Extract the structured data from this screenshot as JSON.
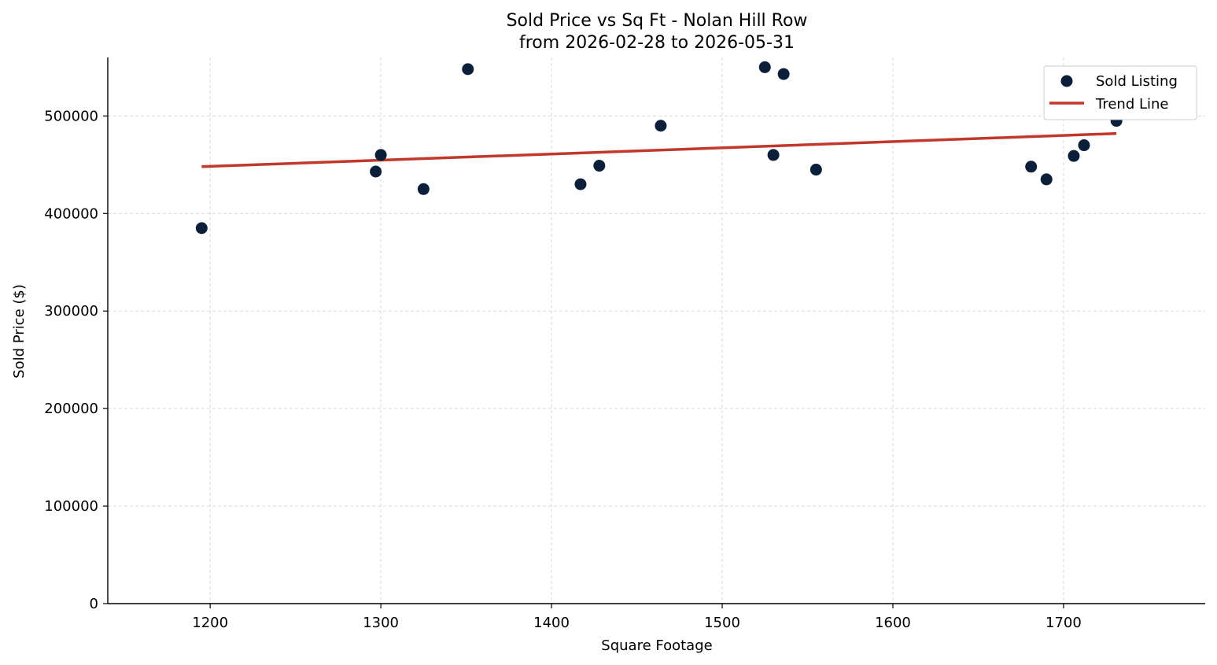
{
  "chart_data": {
    "type": "scatter",
    "title": "Sold Price vs Sq Ft - Nolan Hill Row",
    "subtitle": "from 2026-02-28 to 2026-05-31",
    "xlabel": "Square Footage",
    "ylabel": "Sold Price ($)",
    "xlim": [
      1140,
      1783
    ],
    "ylim": [
      0,
      560000
    ],
    "xticks": [
      1200,
      1300,
      1400,
      1500,
      1600,
      1700
    ],
    "yticks": [
      0,
      100000,
      200000,
      300000,
      400000,
      500000
    ],
    "grid": true,
    "legend_position": "top-right",
    "series": [
      {
        "name": "Sold Listing",
        "kind": "scatter",
        "color": "#0b1f3a",
        "points": [
          {
            "x": 1195,
            "y": 385000
          },
          {
            "x": 1297,
            "y": 443000
          },
          {
            "x": 1300,
            "y": 460000
          },
          {
            "x": 1325,
            "y": 425000
          },
          {
            "x": 1351,
            "y": 548000
          },
          {
            "x": 1417,
            "y": 430000
          },
          {
            "x": 1428,
            "y": 449000
          },
          {
            "x": 1464,
            "y": 490000
          },
          {
            "x": 1525,
            "y": 550000
          },
          {
            "x": 1530,
            "y": 460000
          },
          {
            "x": 1536,
            "y": 543000
          },
          {
            "x": 1555,
            "y": 445000
          },
          {
            "x": 1681,
            "y": 448000
          },
          {
            "x": 1690,
            "y": 435000
          },
          {
            "x": 1706,
            "y": 459000
          },
          {
            "x": 1712,
            "y": 470000
          },
          {
            "x": 1731,
            "y": 495000
          }
        ]
      },
      {
        "name": "Trend Line",
        "kind": "line",
        "color": "#c0392b",
        "points": [
          {
            "x": 1195,
            "y": 448000
          },
          {
            "x": 1731,
            "y": 482000
          }
        ]
      }
    ]
  }
}
